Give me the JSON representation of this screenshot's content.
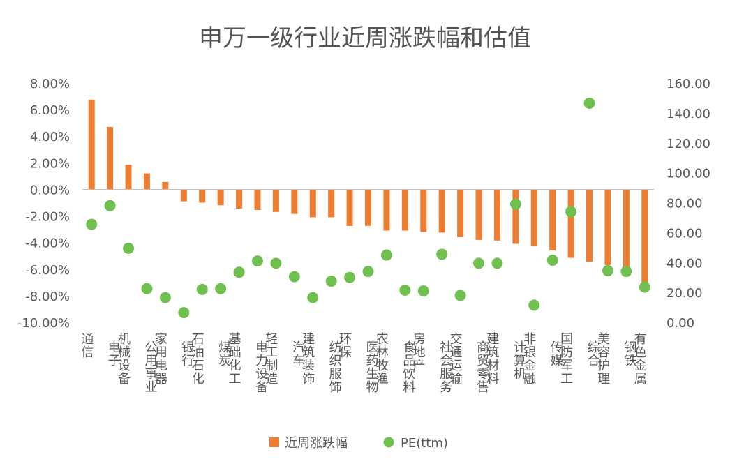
{
  "chart_data": {
    "type": "bar",
    "title": "申万一级行业近周涨跌幅和估值",
    "categories": [
      "通信",
      "电子",
      "机械设备",
      "公用事业",
      "家用电器",
      "银行",
      "石油石化",
      "煤炭",
      "基础化工",
      "电力设备",
      "轻工制造",
      "汽车",
      "建筑装饰",
      "纺织服饰",
      "环保",
      "医药生物",
      "农林牧渔",
      "食品饮料",
      "房地产",
      "社会服务",
      "交通运输",
      "商贸零售",
      "建筑材料",
      "计算机",
      "非银金融",
      "传媒",
      "国防军工",
      "综合",
      "美容护理",
      "钢铁",
      "有色金属"
    ],
    "series": [
      {
        "name": "近周涨跌幅",
        "kind": "bar",
        "axis": "left",
        "color": "#ED7D31",
        "values": [
          6.75,
          4.7,
          1.85,
          1.2,
          0.55,
          -0.9,
          -1.0,
          -1.2,
          -1.45,
          -1.55,
          -1.7,
          -1.85,
          -2.1,
          -2.1,
          -2.75,
          -2.75,
          -3.1,
          -3.1,
          -3.2,
          -3.25,
          -3.6,
          -3.8,
          -3.85,
          -4.1,
          -4.25,
          -4.6,
          -5.15,
          -5.45,
          -5.7,
          -5.85,
          -7.0
        ]
      },
      {
        "name": "PE(ttm)",
        "kind": "scatter",
        "axis": "right",
        "color": "#70C050",
        "values": [
          65.5,
          78.0,
          49.5,
          22.5,
          16.5,
          6.5,
          22.0,
          22.5,
          33.5,
          41.0,
          39.5,
          30.5,
          16.5,
          27.5,
          30.0,
          34.0,
          45.0,
          21.5,
          21.0,
          45.5,
          18.0,
          39.5,
          39.5,
          79.0,
          11.5,
          41.5,
          74.0,
          146.5,
          34.5,
          34.0,
          23.5
        ]
      }
    ],
    "y_left": {
      "min": -10,
      "max": 8,
      "step": 2,
      "ticks": [
        "8.00%",
        "6.00%",
        "4.00%",
        "2.00%",
        "0.00%",
        "-2.00%",
        "-4.00%",
        "-6.00%",
        "-8.00%",
        "-10.00%"
      ]
    },
    "y_right": {
      "min": 0,
      "max": 160,
      "step": 20,
      "ticks": [
        "160.00",
        "140.00",
        "120.00",
        "100.00",
        "80.00",
        "60.00",
        "40.00",
        "20.00",
        "0.00"
      ]
    },
    "grid": false,
    "legend_position": "bottom"
  }
}
